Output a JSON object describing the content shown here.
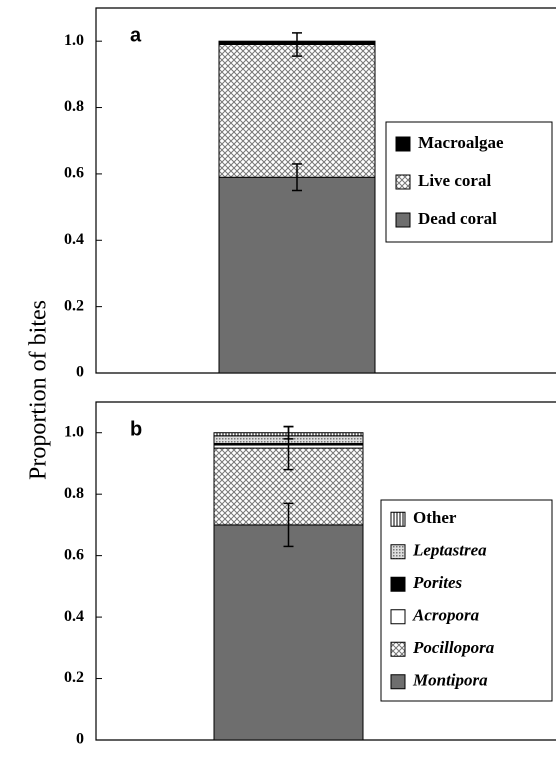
{
  "ylabel": "Proportion of bites",
  "chart_data": [
    {
      "type": "stacked_bar",
      "label": "a",
      "ylim": [
        0,
        1.1
      ],
      "yticks": [
        0,
        0.2,
        0.4,
        0.6,
        0.8,
        {
          "value": 1,
          "label": "1.0"
        }
      ],
      "legend": "right",
      "series": [
        {
          "name": "Dead coral",
          "color": "#6e6e6e",
          "pattern": "solid",
          "values": [
            0.59
          ],
          "errors": [
            0.04
          ]
        },
        {
          "name": "Live coral",
          "color": "#888888",
          "pattern": "crosshatch",
          "values": [
            0.4
          ],
          "errors": [
            0.035
          ]
        },
        {
          "name": "Macroalgae",
          "color": "#000000",
          "pattern": "solid",
          "values": [
            0.01
          ],
          "errors": [
            null
          ]
        }
      ]
    },
    {
      "type": "stacked_bar",
      "label": "b",
      "ylim": [
        0,
        1.1
      ],
      "yticks": [
        0,
        0.2,
        0.4,
        0.6,
        0.8,
        {
          "value": 1,
          "label": "1.0"
        }
      ],
      "legend": "right",
      "series": [
        {
          "name": "Montipora",
          "color": "#6e6e6e",
          "pattern": "solid",
          "font_style": "italic",
          "values": [
            0.7
          ],
          "errors": [
            0.07
          ]
        },
        {
          "name": "Pocillopora",
          "color": "#888888",
          "pattern": "crosshatch",
          "font_style": "italic",
          "values": [
            0.25
          ],
          "errors": [
            0.07
          ]
        },
        {
          "name": "Acropora",
          "color": "#ffffff",
          "pattern": "solid",
          "font_style": "italic",
          "values": [
            0.01
          ],
          "errors": [
            null
          ]
        },
        {
          "name": "Porites",
          "color": "#000000",
          "pattern": "solid",
          "font_style": "italic",
          "values": [
            0.005
          ],
          "errors": [
            null
          ]
        },
        {
          "name": "Leptastrea",
          "color": "#888888",
          "pattern": "dots",
          "font_style": "italic",
          "values": [
            0.025
          ],
          "errors": [
            null
          ]
        },
        {
          "name": "Other",
          "color": "#000000",
          "pattern": "vertical",
          "values": [
            0.01
          ],
          "errors": [
            0.02
          ]
        }
      ]
    }
  ]
}
